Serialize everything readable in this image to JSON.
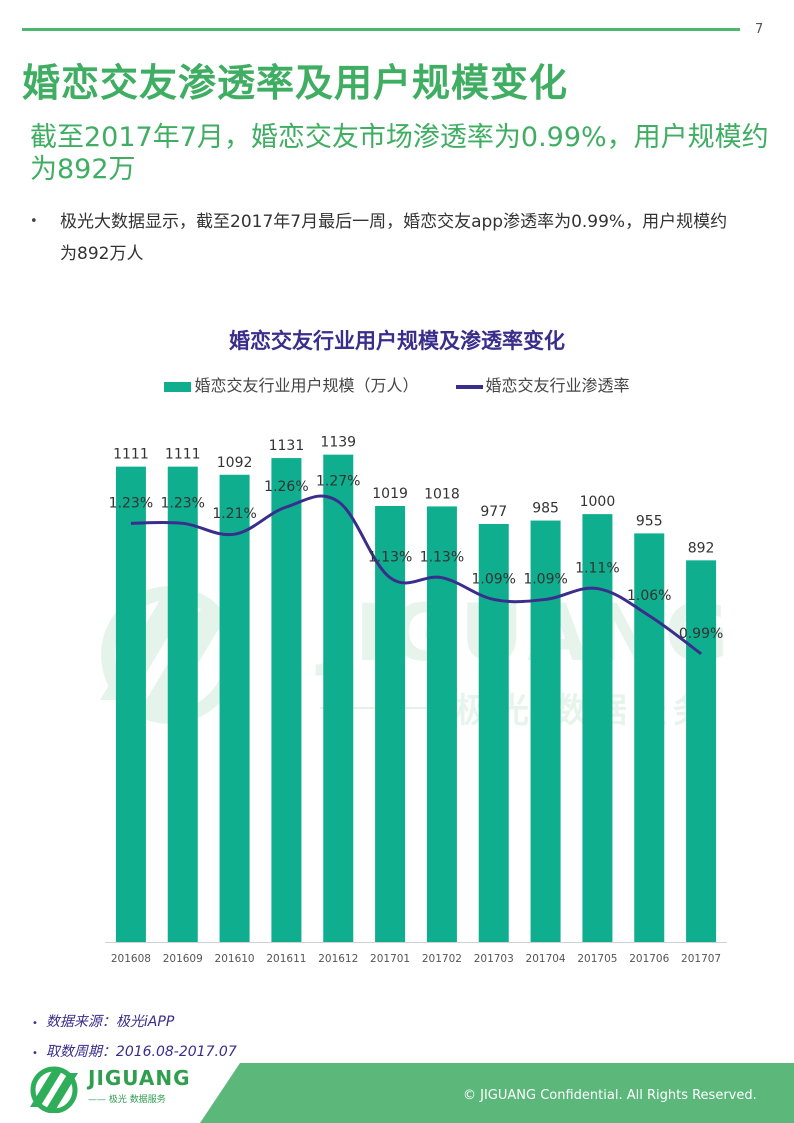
{
  "page": {
    "number": "7",
    "title": "婚恋交友渗透率及用户规模变化",
    "subtitle": "截至2017年7月，婚恋交友市场渗透率为0.99%，用户规模约为892万",
    "bullet": "极光大数据显示，截至2017年7月最后一周，婚恋交友app渗透率为0.99%，用户规模约为892万人",
    "notes": [
      "数据来源：极光iAPP",
      "取数周期：2016.08-2017.07"
    ],
    "copyright": "© JIGUANG  Confidential. All Rights Reserved.",
    "logo_text": "JIGUANG",
    "logo_sub": "—— 极光 数据服务",
    "watermark_text": "JIGUANG",
    "watermark_sub": "极光 数据服务"
  },
  "colors": {
    "brand_green": "#3fae62",
    "bar": "#0fae8e",
    "line": "#3a2e8c"
  },
  "chart_data": {
    "type": "bar",
    "title": "婚恋交友行业用户规模及渗透率变化",
    "categories": [
      "201608",
      "201609",
      "201610",
      "201611",
      "201612",
      "201701",
      "201702",
      "201703",
      "201704",
      "201705",
      "201706",
      "201707"
    ],
    "series": [
      {
        "name": "婚恋交友行业用户规模（万人）",
        "type": "bar",
        "values": [
          1111,
          1111,
          1092,
          1131,
          1139,
          1019,
          1018,
          977,
          985,
          1000,
          955,
          892
        ],
        "labels": [
          "1111",
          "1111",
          "1092",
          "1131",
          "1139",
          "1019",
          "1018",
          "977",
          "985",
          "1000",
          "955",
          "892"
        ]
      },
      {
        "name": "婚恋交友行业渗透率",
        "type": "line",
        "values": [
          1.23,
          1.23,
          1.21,
          1.26,
          1.27,
          1.13,
          1.13,
          1.09,
          1.09,
          1.11,
          1.06,
          0.99
        ],
        "labels": [
          "1.23%",
          "1.23%",
          "1.21%",
          "1.26%",
          "1.27%",
          "1.13%",
          "1.13%",
          "1.09%",
          "1.09%",
          "1.11%",
          "1.06%",
          "0.99%"
        ]
      }
    ],
    "bar_ylim": [
      0,
      1220
    ],
    "line_ylim": [
      0.46,
      1.42
    ],
    "xlabel": "",
    "ylabel": "",
    "grid": false,
    "legend": "top-center"
  }
}
